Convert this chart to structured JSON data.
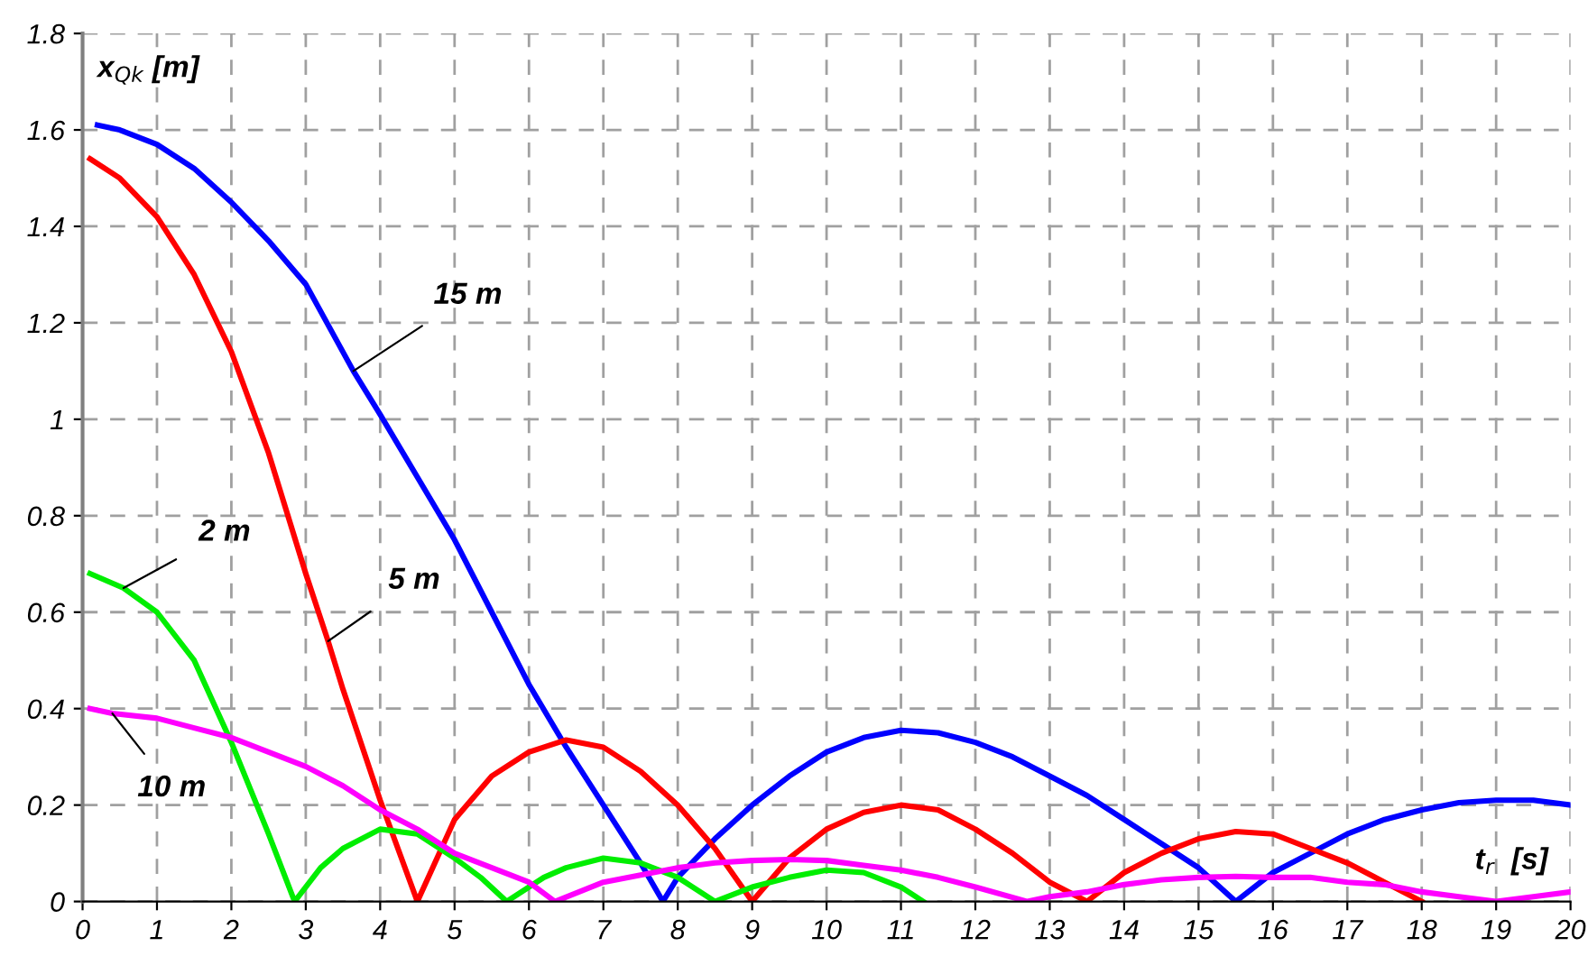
{
  "chart_data": {
    "type": "line",
    "xlabel": "t$_{r}$  [s]",
    "ylabel": "x$_{Qk}$ [m]",
    "xlim": [
      0,
      20
    ],
    "ylim": [
      0,
      1.8
    ],
    "xticks": [
      0,
      1,
      2,
      3,
      4,
      5,
      6,
      7,
      8,
      9,
      10,
      11,
      12,
      13,
      14,
      15,
      16,
      17,
      18,
      19,
      20
    ],
    "yticks": [
      0,
      0.2,
      0.4,
      0.6,
      0.8,
      1,
      1.2,
      1.4,
      1.6,
      1.8
    ],
    "grid": true,
    "marker": "none",
    "line_style": "solid",
    "series": [
      {
        "color": "#0000ff",
        "x": [
          0.2,
          0.5,
          1,
          1.5,
          2,
          2.5,
          3,
          3.64,
          4,
          4.5,
          5,
          5.5,
          6,
          6.5,
          7,
          7.5,
          7.8,
          8,
          8.5,
          9,
          9.5,
          10,
          10.5,
          11,
          11.5,
          12,
          12.5,
          13,
          13.5,
          14,
          14.5,
          15,
          15.5,
          16,
          16.5,
          17,
          17.5,
          18,
          18.5,
          19,
          19.5,
          20
        ],
        "values": [
          1.61,
          1.6,
          1.57,
          1.52,
          1.45,
          1.37,
          1.28,
          1.1,
          1.01,
          0.88,
          0.75,
          0.6,
          0.45,
          0.32,
          0.2,
          0.08,
          0.0,
          0.05,
          0.13,
          0.2,
          0.26,
          0.31,
          0.34,
          0.355,
          0.35,
          0.33,
          0.3,
          0.26,
          0.22,
          0.17,
          0.12,
          0.07,
          0.0,
          0.06,
          0.1,
          0.14,
          0.17,
          0.19,
          0.205,
          0.21,
          0.21,
          0.2
        ]
      },
      {
        "color": "#ff0000",
        "x": [
          0.1,
          0.5,
          1,
          1.5,
          2,
          2.5,
          3,
          3.3,
          3.5,
          4,
          4.5,
          5,
          5.5,
          6,
          6.5,
          7,
          7.5,
          8,
          8.5,
          9,
          9.5,
          10,
          10.5,
          11,
          11.5,
          12,
          12.5,
          13,
          13.5,
          14,
          14.5,
          15,
          15.5,
          16,
          16.5,
          17,
          17.5,
          18
        ],
        "values": [
          1.54,
          1.5,
          1.42,
          1.3,
          1.14,
          0.93,
          0.68,
          0.54,
          0.44,
          0.21,
          0.0,
          0.17,
          0.26,
          0.31,
          0.335,
          0.32,
          0.27,
          0.2,
          0.11,
          0.0,
          0.09,
          0.15,
          0.185,
          0.2,
          0.19,
          0.15,
          0.1,
          0.04,
          0.0,
          0.06,
          0.1,
          0.13,
          0.145,
          0.14,
          0.11,
          0.08,
          0.04,
          0.0
        ]
      },
      {
        "color": "#00ee00",
        "x": [
          0.1,
          0.55,
          1,
          1.5,
          2,
          2.5,
          2.85,
          3.2,
          3.5,
          4,
          4.5,
          5,
          5.35,
          5.7,
          6.2,
          6.5,
          7,
          7.5,
          8,
          8.5,
          9,
          9.5,
          10,
          10.5,
          11,
          11.3
        ],
        "values": [
          0.68,
          0.65,
          0.6,
          0.5,
          0.33,
          0.14,
          0.0,
          0.07,
          0.11,
          0.15,
          0.14,
          0.09,
          0.05,
          0.0,
          0.05,
          0.07,
          0.09,
          0.08,
          0.05,
          0.0,
          0.03,
          0.05,
          0.065,
          0.06,
          0.03,
          0.0
        ]
      },
      {
        "color": "#ff00ff",
        "x": [
          0.1,
          0.4,
          1,
          1.5,
          2,
          2.5,
          3,
          3.5,
          4,
          4.5,
          5,
          5.5,
          6,
          6.35,
          7,
          7.5,
          8,
          8.5,
          9,
          9.5,
          10,
          10.5,
          11,
          11.5,
          12,
          12.7,
          13,
          13.5,
          14,
          14.5,
          15,
          15.5,
          16,
          16.5,
          17,
          17.5,
          18,
          18.5,
          19,
          19.5,
          20
        ],
        "values": [
          0.4,
          0.39,
          0.38,
          0.36,
          0.34,
          0.31,
          0.28,
          0.24,
          0.19,
          0.15,
          0.1,
          0.07,
          0.04,
          0.0,
          0.04,
          0.055,
          0.07,
          0.08,
          0.085,
          0.087,
          0.085,
          0.075,
          0.065,
          0.05,
          0.03,
          0.0,
          0.01,
          0.02,
          0.035,
          0.045,
          0.05,
          0.052,
          0.05,
          0.05,
          0.04,
          0.035,
          0.02,
          0.01,
          0.0,
          0.01,
          0.02
        ]
      }
    ],
    "annotations": [
      {
        "text": "15 m",
        "x": 3.64,
        "y": 1.1
      },
      {
        "text": "5 m",
        "x": 3.3,
        "y": 0.54
      },
      {
        "text": "2 m",
        "x": 0.55,
        "y": 0.65
      },
      {
        "text": "10 m",
        "x": 0.4,
        "y": 0.39
      }
    ]
  }
}
